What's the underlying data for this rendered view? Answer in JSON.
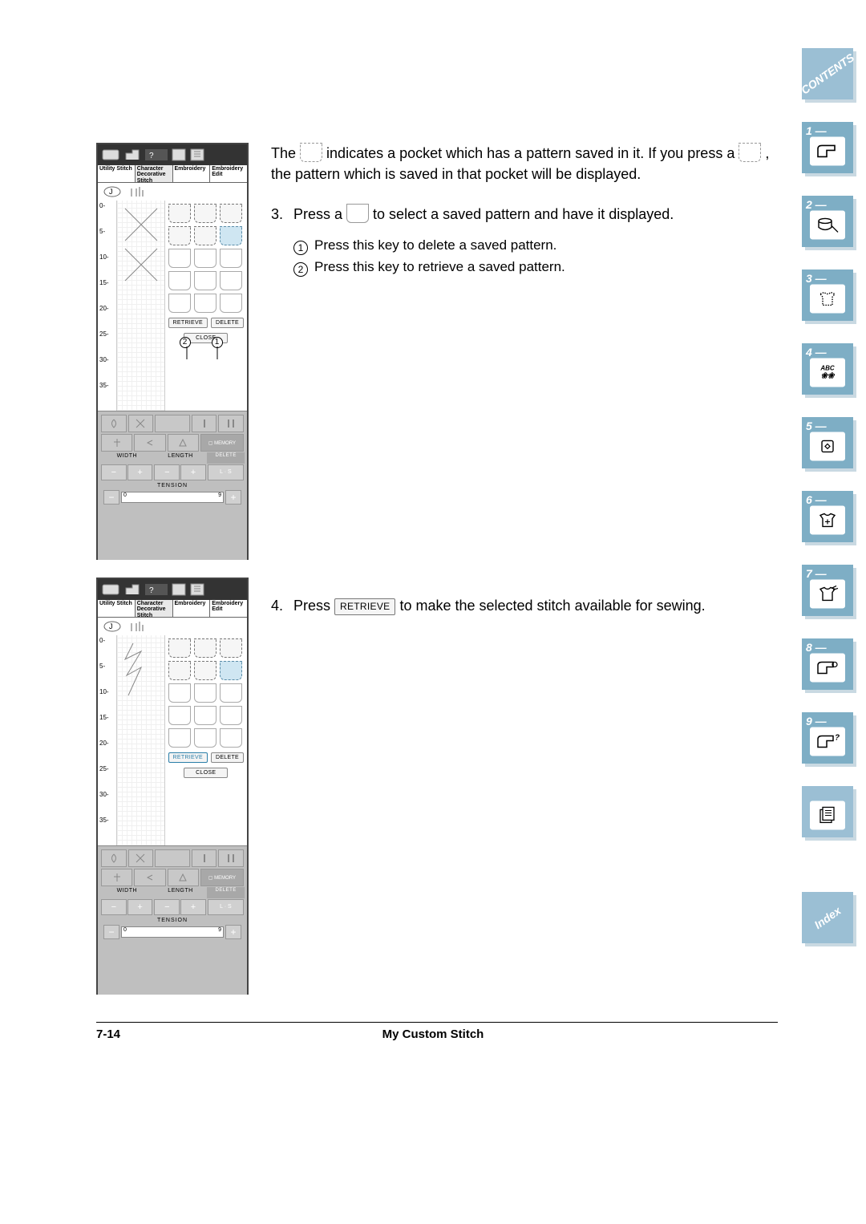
{
  "sidebar": {
    "contents_label": "CONTENTS",
    "index_label": "Index",
    "tabs": [
      {
        "num": "1 —"
      },
      {
        "num": "2 —"
      },
      {
        "num": "3 —"
      },
      {
        "num": "4 —",
        "icon_text": "ABC"
      },
      {
        "num": "5 —"
      },
      {
        "num": "6 —"
      },
      {
        "num": "7 —"
      },
      {
        "num": "8 —"
      },
      {
        "num": "9 —"
      }
    ]
  },
  "body": {
    "p1a": "The ",
    "p1b": " indicates a pocket which has a pattern saved in it. If you press a ",
    "p1c": " , the pattern which is saved in that pocket will be displayed.",
    "step3_num": "3.",
    "step3a": "Press a ",
    "step3b": " to select a saved pattern and have it displayed.",
    "sub1": "Press this key to delete a saved pattern.",
    "sub2": "Press this key to retrieve a saved pattern.",
    "step4_num": "4.",
    "step4a": "Press ",
    "step4b": " to make the selected stitch available for sewing.",
    "retrieve_btn": "RETRIEVE"
  },
  "footer": {
    "page": "7-14",
    "title": "My Custom Stitch"
  },
  "device": {
    "tabs": [
      "Utility Stitch",
      "Character Decorative Stitch",
      "Embroidery",
      "Embroidery Edit"
    ],
    "ruler_ticks": [
      "0",
      "5",
      "10",
      "15",
      "20",
      "25",
      "30",
      "35"
    ],
    "retrieve": "RETRIEVE",
    "delete": "DELETE",
    "close": "CLOSE",
    "memory": "MEMORY",
    "width": "WIDTH",
    "length": "LENGTH",
    "tension": "TENSION",
    "ls": "L · S",
    "delete2": "DELETE",
    "callout1": "1",
    "callout2": "2",
    "pockets_dev1": [
      [
        "saved",
        "saved",
        "saved"
      ],
      [
        "saved",
        "saved",
        "sel"
      ],
      [
        "",
        "",
        ""
      ],
      [
        "",
        "",
        ""
      ],
      [
        "",
        "",
        ""
      ]
    ],
    "pockets_dev2": [
      [
        "saved",
        "saved",
        "saved"
      ],
      [
        "saved",
        "saved",
        "sel"
      ],
      [
        "",
        "",
        ""
      ],
      [
        "",
        "",
        ""
      ],
      [
        "",
        "",
        ""
      ]
    ],
    "colors": {
      "nav_bg": "#7eaec5",
      "nav_shadow": "#c9d9e2",
      "selected_pocket": "#cfe6f2",
      "ctrl_bg": "#bfbfbf"
    }
  }
}
